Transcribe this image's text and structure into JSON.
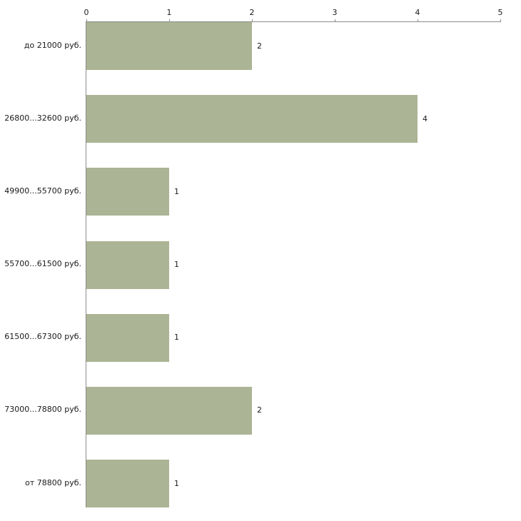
{
  "chart_data": {
    "type": "bar",
    "orientation": "horizontal",
    "title": "",
    "xlabel": "",
    "ylabel": "",
    "categories": [
      "до 21000 руб.",
      "26800...32600 руб.",
      "49900...55700 руб.",
      "55700...61500 руб.",
      "61500...67300 руб.",
      "73000...78800 руб.",
      "от 78800 руб."
    ],
    "values": [
      2,
      4,
      1,
      1,
      1,
      2,
      1
    ],
    "xlim": [
      0,
      5
    ],
    "x_ticks": [
      0,
      1,
      2,
      3,
      4,
      5
    ],
    "grid": false,
    "legend": false,
    "value_labels": true,
    "colors": {
      "bar": "#abb494",
      "axis": "#8c8c8c",
      "text": "#1a1a1a",
      "background": "#ffffff"
    }
  }
}
